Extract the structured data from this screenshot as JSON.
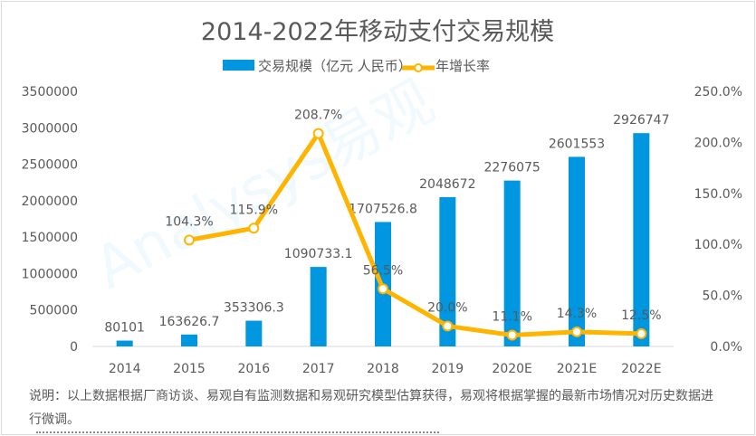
{
  "chart_data": {
    "type": "bar+line",
    "title": "2014-2022年移动支付交易规模",
    "categories": [
      "2014",
      "2015",
      "2016",
      "2017",
      "2018",
      "2019",
      "2020E",
      "2021E",
      "2022E"
    ],
    "series": [
      {
        "name": "交易规模（亿元 人民币）",
        "type": "bar",
        "axis": "left",
        "color": "#0096e0",
        "values": [
          80101,
          163626.7,
          353306.3,
          1090733.1,
          1707526.8,
          2048672,
          2276075,
          2601553,
          2926747
        ],
        "labels": [
          "80101",
          "163626.7",
          "353306.3",
          "1090733.1",
          "1707526.8",
          "2048672",
          "2276075",
          "2601553",
          "2926747"
        ]
      },
      {
        "name": "年增长率",
        "type": "line",
        "axis": "right",
        "color": "#ffb400",
        "values": [
          null,
          104.3,
          115.9,
          208.7,
          56.5,
          20.0,
          11.1,
          14.3,
          12.5
        ],
        "labels": [
          "",
          "104.3%",
          "115.9%",
          "208.7%",
          "56.5%",
          "20.0%",
          "11.1%",
          "14.3%",
          "12.5%"
        ]
      }
    ],
    "left_axis": {
      "ylim": [
        0,
        3500000
      ],
      "ticks": [
        "0",
        "500000",
        "1000000",
        "1500000",
        "2000000",
        "2500000",
        "3000000",
        "3500000"
      ]
    },
    "right_axis": {
      "ylim": [
        0,
        250
      ],
      "ticks": [
        "0.0%",
        "50.0%",
        "100.0%",
        "150.0%",
        "200.0%",
        "250.0%"
      ]
    },
    "legend_position": "top-center",
    "grid": false
  },
  "note": "说明：以上数据根据厂商访谈、易观自有监测数据和易观研究模型估算获得，易观将根据掌握的最新市场情况对历史数据进行微调。",
  "watermark": "Analysys易观"
}
